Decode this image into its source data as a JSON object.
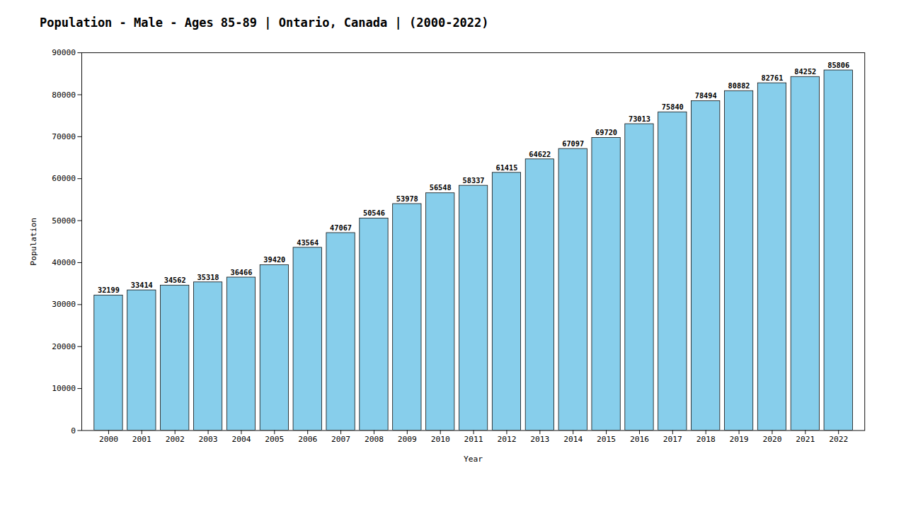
{
  "chart_data": {
    "type": "bar",
    "title": "Population - Male - Ages 85-89 | Ontario, Canada |  (2000-2022)",
    "xlabel": "Year",
    "ylabel": "Population",
    "categories": [
      "2000",
      "2001",
      "2002",
      "2003",
      "2004",
      "2005",
      "2006",
      "2007",
      "2008",
      "2009",
      "2010",
      "2011",
      "2012",
      "2013",
      "2014",
      "2015",
      "2016",
      "2017",
      "2018",
      "2019",
      "2020",
      "2021",
      "2022"
    ],
    "values": [
      32199,
      33414,
      34562,
      35318,
      36466,
      39420,
      43564,
      47067,
      50546,
      53978,
      56548,
      58337,
      61415,
      64622,
      67097,
      69720,
      73013,
      75840,
      78494,
      80882,
      82761,
      84252,
      85806
    ],
    "color": "#87CEEB",
    "ylim": [
      0,
      90000
    ],
    "yticks": [
      0,
      10000,
      20000,
      30000,
      40000,
      50000,
      60000,
      70000,
      80000,
      90000
    ],
    "data_labels": true,
    "grid": false
  }
}
